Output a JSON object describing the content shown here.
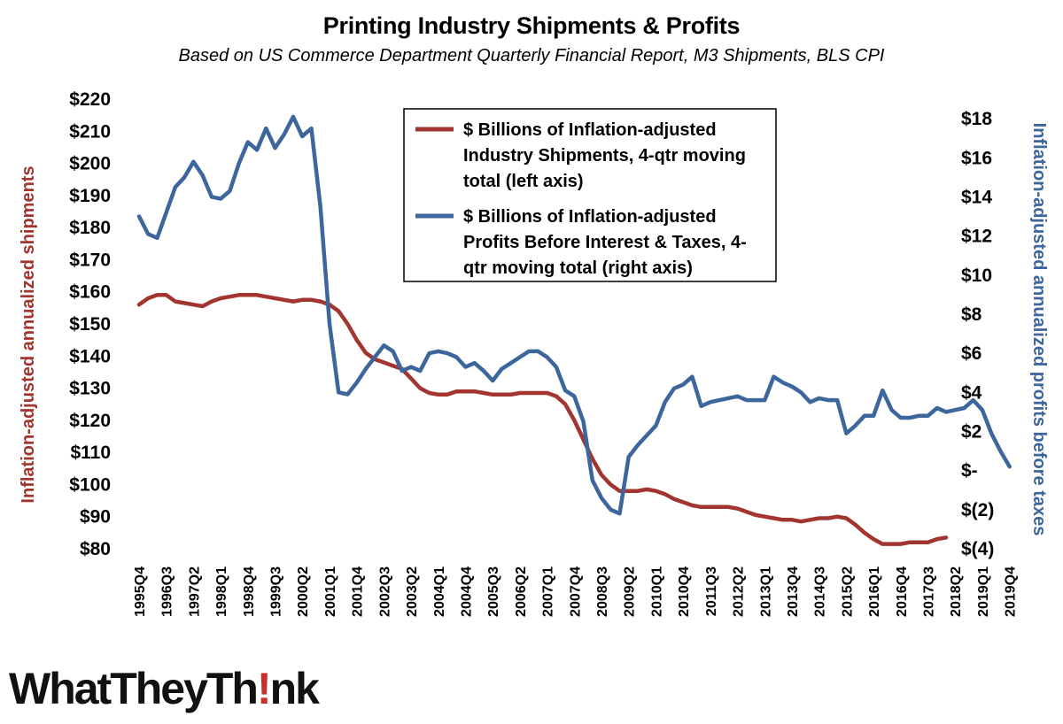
{
  "header": {
    "title": "Printing Industry Shipments & Profits",
    "subtitle": "Based on US Commerce Department Quarterly Financial Report, M3 Shipments, BLS CPI"
  },
  "logo": {
    "text_before": "WhatTheyTh",
    "text_mark": "!",
    "text_after": "nk"
  },
  "chart_data": {
    "type": "line",
    "ylabel_left": "Inflation-adjusted annualized shipments",
    "ylabel_right": "Inflation-adjusted annualized profits before taxes",
    "ylim_left": [
      80,
      220
    ],
    "ylim_right": [
      -4,
      19
    ],
    "left_ticks": [
      80,
      90,
      100,
      110,
      120,
      130,
      140,
      150,
      160,
      170,
      180,
      190,
      200,
      210,
      220
    ],
    "left_tick_labels": [
      "$80",
      "$90",
      "$100",
      "$110",
      "$120",
      "$130",
      "$140",
      "$150",
      "$160",
      "$170",
      "$180",
      "$190",
      "$200",
      "$210",
      "$220"
    ],
    "right_ticks": [
      -4,
      -2,
      0,
      2,
      4,
      6,
      8,
      10,
      12,
      14,
      16,
      18
    ],
    "right_tick_labels": [
      "$(4)",
      "$(2)",
      "$-",
      "$2",
      "$4",
      "$6",
      "$8",
      "$10",
      "$12",
      "$14",
      "$16",
      "$18"
    ],
    "x_start": "1995Q4",
    "x_tick_labels": [
      "1995Q4",
      "1996Q3",
      "1997Q2",
      "1998Q1",
      "1998Q4",
      "1999Q3",
      "2000Q2",
      "2001Q1",
      "2001Q4",
      "2002Q3",
      "2003Q2",
      "2004Q1",
      "2004Q4",
      "2005Q3",
      "2006Q2",
      "2007Q1",
      "2007Q4",
      "2008Q3",
      "2009Q2",
      "2010Q1",
      "2010Q4",
      "2011Q3",
      "2012Q2",
      "2013Q1",
      "2013Q4",
      "2014Q3",
      "2015Q2",
      "2016Q1",
      "2016Q4",
      "2017Q3",
      "2018Q2",
      "2019Q1",
      "2019Q4"
    ],
    "grid": false,
    "legend_position": "top-center",
    "series": [
      {
        "name": "$ Billions of Inflation-adjusted Industry Shipments, 4-qtr moving total (left axis)",
        "axis": "left",
        "color": "#a23530",
        "values": [
          156,
          158,
          159,
          159,
          157,
          156.5,
          156,
          155.5,
          157,
          158,
          158.5,
          159,
          159,
          159,
          158.5,
          158,
          157.5,
          157,
          157.5,
          157.5,
          157,
          156,
          154,
          150,
          145,
          141,
          139,
          138,
          137,
          136,
          133,
          130,
          128.5,
          128,
          128,
          129,
          129,
          129,
          128.5,
          128,
          128,
          128,
          128.5,
          128.5,
          128.5,
          128.5,
          127.5,
          125,
          120,
          114,
          108,
          103,
          100,
          98,
          98,
          98,
          98.5,
          98,
          97,
          95.5,
          94.5,
          93.5,
          93,
          93,
          93,
          93,
          92.5,
          91.5,
          90.5,
          90,
          89.5,
          89,
          89,
          88.5,
          89,
          89.5,
          89.5,
          90,
          89.5,
          87.5,
          85,
          83,
          81.5,
          81.5,
          81.5,
          82,
          82,
          82,
          83,
          83.5
        ]
      },
      {
        "name": "$ Billions of Inflation-adjusted Profits Before Interest & Taxes, 4-qtr moving total (right axis)",
        "axis": "right",
        "color": "#3c669c",
        "values": [
          13,
          12.1,
          11.9,
          13.2,
          14.5,
          15,
          15.8,
          15.1,
          14,
          13.9,
          14.3,
          15.7,
          16.8,
          16.4,
          17.5,
          16.5,
          17.2,
          18.1,
          17.1,
          17.5,
          13.5,
          7.5,
          4,
          3.9,
          4.5,
          5.2,
          5.8,
          6.4,
          6.1,
          5.1,
          5.3,
          5.1,
          6,
          6.1,
          6,
          5.8,
          5.3,
          5.5,
          5.1,
          4.6,
          5.2,
          5.5,
          5.8,
          6.1,
          6.1,
          5.8,
          5.3,
          4.1,
          3.8,
          2.5,
          -0.5,
          -1.4,
          -2,
          -2.2,
          0.7,
          1.3,
          1.8,
          2.3,
          3.5,
          4.2,
          4.4,
          4.8,
          3.3,
          3.5,
          3.6,
          3.7,
          3.8,
          3.6,
          3.6,
          3.6,
          4.8,
          4.5,
          4.3,
          4,
          3.5,
          3.7,
          3.6,
          3.6,
          1.9,
          2.3,
          2.8,
          2.8,
          4.1,
          3.1,
          2.7,
          2.7,
          2.8,
          2.8,
          3.2,
          3,
          3.1,
          3.2,
          3.6,
          3.1,
          1.9,
          1.0,
          0.2
        ]
      }
    ]
  }
}
